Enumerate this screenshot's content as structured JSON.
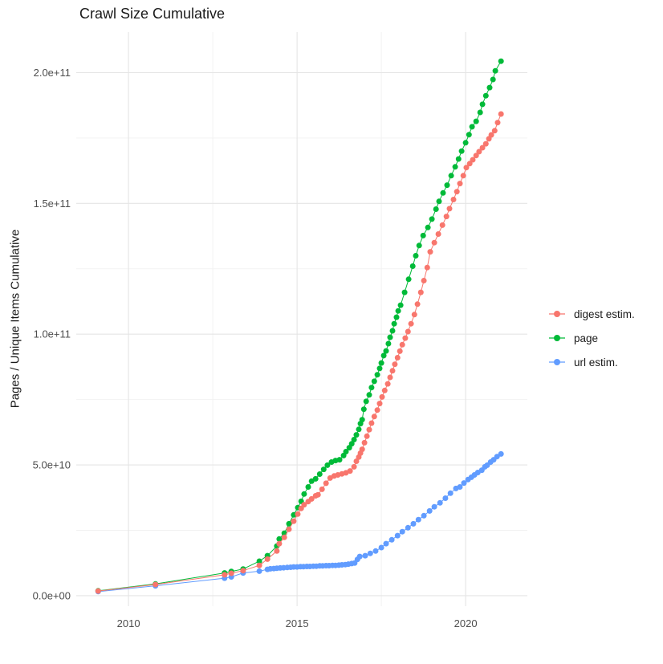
{
  "title": "Crawl Size Cumulative",
  "colors": {
    "background": "#FFFFFF",
    "grid_major": "#E5E5E5",
    "grid_minor": "#F1F1F1",
    "tick_text": "#4D4D4D",
    "title_text": "#1A1A1A"
  },
  "chart_data": {
    "type": "line",
    "title": "Crawl Size Cumulative",
    "xlabel": "",
    "ylabel": "Pages / Unique Items Cumulative",
    "value_unit": "1e9 (billions); y tick values are in billions of pages/items",
    "legend_position": "right",
    "grid": true,
    "x_axis": {
      "domain": [
        2008.45,
        2021.83
      ],
      "ticks": [
        2010,
        2015,
        2020
      ],
      "tick_labels": [
        "2010",
        "2015",
        "2020"
      ],
      "minor_ticks": [
        2012.5,
        2017.5
      ]
    },
    "y_axis": {
      "domain": [
        -4,
        215.5
      ],
      "ticks": [
        0,
        50,
        100,
        150,
        200
      ],
      "tick_labels": [
        "0.0e+00",
        "5.0e+10",
        "1.0e+11",
        "1.5e+11",
        "2.0e+11"
      ],
      "minor_ticks": [
        25,
        75,
        125,
        175
      ]
    },
    "series": [
      {
        "name": "digest estim.",
        "color": "#F8766D",
        "points": [
          [
            2009.1,
            1.8
          ],
          [
            2010.8,
            4.3
          ],
          [
            2012.85,
            8.0
          ],
          [
            2013.05,
            8.6
          ],
          [
            2013.4,
            9.6
          ],
          [
            2013.88,
            11.6
          ],
          [
            2014.12,
            14.0
          ],
          [
            2014.4,
            17.1
          ],
          [
            2014.47,
            19.9
          ],
          [
            2014.62,
            22.3
          ],
          [
            2014.76,
            25.4
          ],
          [
            2014.9,
            28.5
          ],
          [
            2015.02,
            31.2
          ],
          [
            2015.12,
            33.4
          ],
          [
            2015.21,
            34.8
          ],
          [
            2015.33,
            36.0
          ],
          [
            2015.43,
            37.0
          ],
          [
            2015.55,
            38.2
          ],
          [
            2015.62,
            38.6
          ],
          [
            2015.74,
            40.7
          ],
          [
            2015.86,
            43.0
          ],
          [
            2015.98,
            45.0
          ],
          [
            2016.1,
            45.8
          ],
          [
            2016.21,
            46.2
          ],
          [
            2016.33,
            46.6
          ],
          [
            2016.45,
            47.0
          ],
          [
            2016.57,
            47.7
          ],
          [
            2016.69,
            49.3
          ],
          [
            2016.76,
            51.4
          ],
          [
            2016.83,
            53.0
          ],
          [
            2016.88,
            54.5
          ],
          [
            2016.93,
            56.0
          ],
          [
            2017.0,
            58.5
          ],
          [
            2017.07,
            61.0
          ],
          [
            2017.14,
            63.5
          ],
          [
            2017.21,
            66.0
          ],
          [
            2017.29,
            68.5
          ],
          [
            2017.38,
            71.0
          ],
          [
            2017.45,
            73.5
          ],
          [
            2017.52,
            76.0
          ],
          [
            2017.6,
            78.5
          ],
          [
            2017.69,
            81.0
          ],
          [
            2017.76,
            83.5
          ],
          [
            2017.83,
            86.0
          ],
          [
            2017.9,
            88.5
          ],
          [
            2017.98,
            91.0
          ],
          [
            2018.05,
            93.5
          ],
          [
            2018.12,
            96.0
          ],
          [
            2018.21,
            98.5
          ],
          [
            2018.29,
            101.0
          ],
          [
            2018.38,
            104.0
          ],
          [
            2018.48,
            107.5
          ],
          [
            2018.57,
            111.5
          ],
          [
            2018.67,
            116.0
          ],
          [
            2018.76,
            120.5
          ],
          [
            2018.86,
            125.5
          ],
          [
            2018.95,
            131.5
          ],
          [
            2019.07,
            135.0
          ],
          [
            2019.19,
            138.3
          ],
          [
            2019.31,
            141.7
          ],
          [
            2019.43,
            145.0
          ],
          [
            2019.52,
            148.0
          ],
          [
            2019.64,
            151.5
          ],
          [
            2019.74,
            154.5
          ],
          [
            2019.83,
            157.6
          ],
          [
            2019.93,
            160.6
          ],
          [
            2020.02,
            163.7
          ],
          [
            2020.12,
            165.2
          ],
          [
            2020.21,
            166.7
          ],
          [
            2020.31,
            168.3
          ],
          [
            2020.4,
            169.8
          ],
          [
            2020.5,
            171.3
          ],
          [
            2020.6,
            172.8
          ],
          [
            2020.69,
            174.7
          ],
          [
            2020.76,
            176.2
          ],
          [
            2020.86,
            177.8
          ],
          [
            2020.95,
            180.9
          ],
          [
            2021.05,
            184.2
          ]
        ]
      },
      {
        "name": "page",
        "color": "#00BA38",
        "points": [
          [
            2009.1,
            1.9
          ],
          [
            2010.8,
            4.5
          ],
          [
            2012.85,
            8.7
          ],
          [
            2013.05,
            9.3
          ],
          [
            2013.4,
            10.2
          ],
          [
            2013.88,
            13.2
          ],
          [
            2014.12,
            15.3
          ],
          [
            2014.4,
            19.0
          ],
          [
            2014.47,
            21.7
          ],
          [
            2014.62,
            23.9
          ],
          [
            2014.76,
            27.5
          ],
          [
            2014.9,
            30.9
          ],
          [
            2015.02,
            33.7
          ],
          [
            2015.12,
            36.1
          ],
          [
            2015.21,
            38.9
          ],
          [
            2015.33,
            41.6
          ],
          [
            2015.43,
            43.8
          ],
          [
            2015.55,
            44.7
          ],
          [
            2015.67,
            46.5
          ],
          [
            2015.79,
            48.3
          ],
          [
            2015.9,
            49.9
          ],
          [
            2016.02,
            51.1
          ],
          [
            2016.14,
            51.7
          ],
          [
            2016.26,
            52.0
          ],
          [
            2016.38,
            53.6
          ],
          [
            2016.45,
            55.1
          ],
          [
            2016.55,
            56.6
          ],
          [
            2016.62,
            58.1
          ],
          [
            2016.69,
            59.7
          ],
          [
            2016.76,
            61.5
          ],
          [
            2016.83,
            63.6
          ],
          [
            2016.88,
            65.8
          ],
          [
            2016.93,
            67.3
          ],
          [
            2016.98,
            71.3
          ],
          [
            2017.05,
            74.3
          ],
          [
            2017.14,
            76.8
          ],
          [
            2017.21,
            79.6
          ],
          [
            2017.29,
            82.0
          ],
          [
            2017.38,
            84.5
          ],
          [
            2017.45,
            86.9
          ],
          [
            2017.5,
            89.0
          ],
          [
            2017.57,
            91.8
          ],
          [
            2017.64,
            93.6
          ],
          [
            2017.71,
            96.4
          ],
          [
            2017.76,
            98.8
          ],
          [
            2017.83,
            101.3
          ],
          [
            2017.88,
            104.0
          ],
          [
            2017.95,
            106.5
          ],
          [
            2018.0,
            108.9
          ],
          [
            2018.07,
            111.1
          ],
          [
            2018.19,
            116.0
          ],
          [
            2018.31,
            121.0
          ],
          [
            2018.43,
            126.0
          ],
          [
            2018.52,
            130.0
          ],
          [
            2018.62,
            133.9
          ],
          [
            2018.74,
            137.7
          ],
          [
            2018.88,
            140.8
          ],
          [
            2019.0,
            144.0
          ],
          [
            2019.12,
            147.8
          ],
          [
            2019.21,
            150.8
          ],
          [
            2019.33,
            154.0
          ],
          [
            2019.45,
            157.0
          ],
          [
            2019.57,
            160.6
          ],
          [
            2019.69,
            164.0
          ],
          [
            2019.79,
            167.0
          ],
          [
            2019.88,
            170.0
          ],
          [
            2020.0,
            173.2
          ],
          [
            2020.1,
            176.3
          ],
          [
            2020.19,
            179.3
          ],
          [
            2020.31,
            181.4
          ],
          [
            2020.43,
            184.8
          ],
          [
            2020.5,
            187.9
          ],
          [
            2020.6,
            191.2
          ],
          [
            2020.71,
            194.3
          ],
          [
            2020.81,
            197.4
          ],
          [
            2020.88,
            200.7
          ],
          [
            2021.05,
            204.4
          ]
        ]
      },
      {
        "name": "url estim.",
        "color": "#619CFF",
        "points": [
          [
            2009.1,
            1.6
          ],
          [
            2010.8,
            3.8
          ],
          [
            2012.85,
            6.7
          ],
          [
            2013.05,
            7.2
          ],
          [
            2013.4,
            8.7
          ],
          [
            2013.88,
            9.4
          ],
          [
            2014.12,
            10.1
          ],
          [
            2014.21,
            10.3
          ],
          [
            2014.31,
            10.4
          ],
          [
            2014.4,
            10.5
          ],
          [
            2014.5,
            10.6
          ],
          [
            2014.6,
            10.7
          ],
          [
            2014.71,
            10.8
          ],
          [
            2014.81,
            10.9
          ],
          [
            2014.9,
            11.0
          ],
          [
            2015.0,
            11.0
          ],
          [
            2015.1,
            11.1
          ],
          [
            2015.19,
            11.1
          ],
          [
            2015.29,
            11.2
          ],
          [
            2015.38,
            11.2
          ],
          [
            2015.48,
            11.3
          ],
          [
            2015.57,
            11.3
          ],
          [
            2015.67,
            11.4
          ],
          [
            2015.76,
            11.4
          ],
          [
            2015.86,
            11.5
          ],
          [
            2015.95,
            11.5
          ],
          [
            2016.05,
            11.6
          ],
          [
            2016.14,
            11.6
          ],
          [
            2016.24,
            11.7
          ],
          [
            2016.33,
            11.8
          ],
          [
            2016.43,
            11.9
          ],
          [
            2016.52,
            12.1
          ],
          [
            2016.62,
            12.3
          ],
          [
            2016.71,
            12.5
          ],
          [
            2016.79,
            13.9
          ],
          [
            2016.86,
            15.0
          ],
          [
            2017.02,
            15.3
          ],
          [
            2017.17,
            16.2
          ],
          [
            2017.33,
            17.1
          ],
          [
            2017.5,
            18.4
          ],
          [
            2017.64,
            19.9
          ],
          [
            2017.81,
            21.4
          ],
          [
            2017.98,
            23.0
          ],
          [
            2018.12,
            24.5
          ],
          [
            2018.29,
            26.0
          ],
          [
            2018.45,
            27.5
          ],
          [
            2018.6,
            29.1
          ],
          [
            2018.76,
            30.6
          ],
          [
            2018.93,
            32.4
          ],
          [
            2019.07,
            34.0
          ],
          [
            2019.24,
            35.5
          ],
          [
            2019.4,
            37.3
          ],
          [
            2019.55,
            39.2
          ],
          [
            2019.71,
            41.0
          ],
          [
            2019.83,
            41.6
          ],
          [
            2019.95,
            43.1
          ],
          [
            2020.07,
            44.4
          ],
          [
            2020.17,
            45.3
          ],
          [
            2020.26,
            46.2
          ],
          [
            2020.36,
            47.1
          ],
          [
            2020.48,
            48.0
          ],
          [
            2020.57,
            49.3
          ],
          [
            2020.64,
            49.9
          ],
          [
            2020.74,
            51.1
          ],
          [
            2020.83,
            52.0
          ],
          [
            2020.93,
            53.2
          ],
          [
            2021.05,
            54.2
          ]
        ]
      }
    ]
  }
}
